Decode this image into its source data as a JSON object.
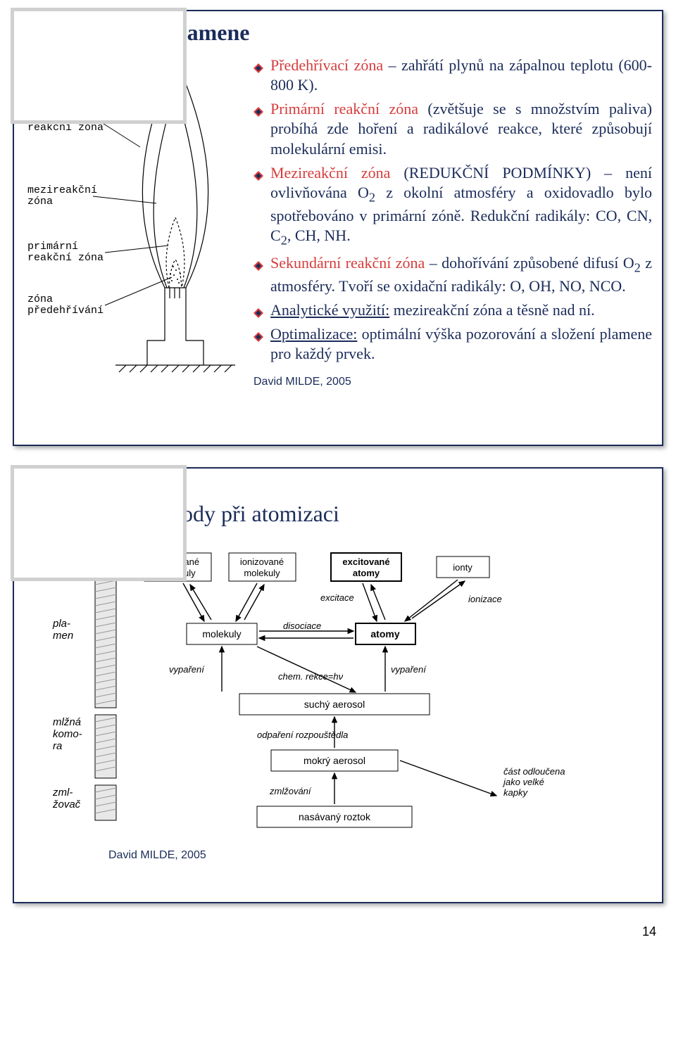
{
  "slide1": {
    "title": "Struktura plamene",
    "attribution": "David MILDE, 2005",
    "flame_labels": {
      "sek": "sekundární\nreakční zóna",
      "mezi": "mezireakční\nzóna",
      "prim": "primární\nreakční zóna",
      "pred": "zóna\npředehřívání"
    },
    "bullets": [
      {
        "lead": "Předehřívací zóna",
        "lead_color": "#d63c3c",
        "rest": " – zahřátí plynů na zápalnou teplotu (600-800 K)."
      },
      {
        "lead": "Primární reakční zóna",
        "lead_color": "#d63c3c",
        "rest": " (zvětšuje se s množstvím paliva) probíhá zde hoření a radikálové reakce, které způsobují molekulární emisi."
      },
      {
        "lead": "Mezireakční zóna",
        "lead_color": "#d63c3c",
        "rest_html": " (REDUKČNÍ PODMÍNKY) – není ovlivňována O<sub>2</sub> z okolní atmosféry a oxidovadlo bylo spotřebováno v primární zóně. Redukční radikály: CO, CN, C<sub>2</sub>, CH, NH."
      },
      {
        "lead": "Sekundární reakční zóna",
        "lead_color": "#d63c3c",
        "rest_html": " – dohořívání způsobené difusí O<sub>2</sub> z atmosféry. Tvoří se oxidační radikály: O, OH, NO, NCO."
      },
      {
        "lead": "Analytické využití:",
        "lead_color": "#1b2c5a",
        "lead_underline": true,
        "rest": " mezireakční zóna a těsně nad ní."
      },
      {
        "lead": "Optimalizace:",
        "lead_color": "#1b2c5a",
        "lead_underline": true,
        "rest": " optimální výška pozorování a složení plamene pro každý prvek."
      }
    ]
  },
  "slide2": {
    "title": "Základní pochody při atomizaci",
    "attribution": "David MILDE, 2005",
    "side_labels": {
      "plamen": "pla-\nmen",
      "mlzna": "mlžná\nkomo-\nra",
      "zml": "zml-\nžovač"
    },
    "boxes": {
      "exc_mol": "excitované\nmolekuly",
      "ion_mol": "ionizované\nmolekuly",
      "exc_at": "excitované\natomy",
      "ionty": "ionty",
      "molekuly": "molekuly",
      "atomy": "atomy",
      "suchy": "suchý aerosol",
      "mokry": "mokrý aerosol",
      "nasav": "nasávaný roztok"
    },
    "arrows": {
      "excitace": "excitace",
      "ionizace": "ionizace",
      "disociace": "disociace",
      "chem": "chem. rekce=hν",
      "vypareni": "vypaření",
      "odp": "odpaření rozpouštědla",
      "zmlz": "zmlžování",
      "cast": "část odloučena\njako velké\nkapky"
    }
  },
  "page_num": "14",
  "colors": {
    "navy": "#1b2c5a",
    "red": "#d63c3c",
    "corner": "#d0d0d0"
  }
}
